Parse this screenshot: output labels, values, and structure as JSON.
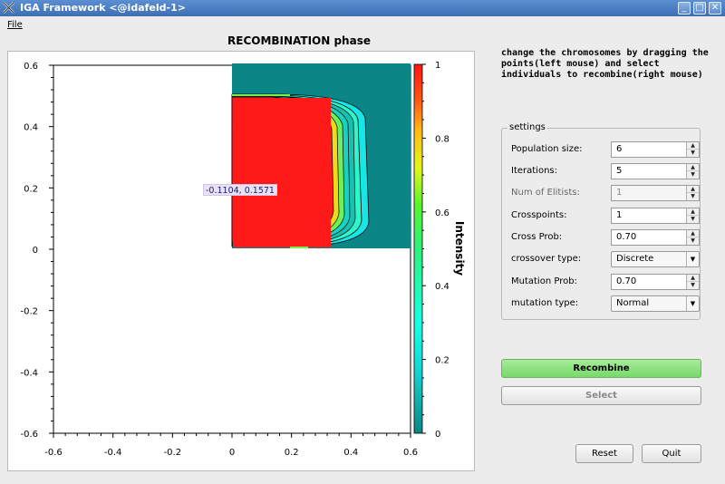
{
  "window": {
    "title": "IGA Framework <@idafeld-1>",
    "icon": "x-app-icon",
    "controls": [
      "minimize-icon",
      "maximize-icon",
      "close-icon"
    ]
  },
  "menubar": {
    "file": "File"
  },
  "plot": {
    "title": "RECOMBINATION phase",
    "hover_label": "-0.1104, 0.1571",
    "colorbar_label": "Intensity",
    "x_ticks": [
      "-0.6",
      "-0.4",
      "-0.2",
      "0",
      "0.2",
      "0.4",
      "0.6"
    ],
    "y_ticks": [
      "0.6",
      "0.4",
      "0.2",
      "0",
      "-0.2",
      "-0.4",
      "-0.6"
    ],
    "colorbar_ticks": [
      "1",
      "0.8",
      "0.6",
      "0.4",
      "0.2",
      "0"
    ]
  },
  "chart_data": {
    "type": "heatmap",
    "xlim": [
      -0.6,
      0.6
    ],
    "ylim": [
      -0.6,
      0.6
    ],
    "colorbar": {
      "label": "Intensity",
      "range": [
        0,
        1
      ],
      "ticks": [
        0,
        0.2,
        0.4,
        0.6,
        0.8,
        1
      ]
    },
    "heatmap_extent": {
      "x": [
        0,
        0.6
      ],
      "y": [
        0,
        0.6
      ]
    }
  },
  "instructions": "change the chromosomes by dragging the points(left mouse) and select individuals to recombine(right mouse)",
  "settings": {
    "legend": "settings",
    "population_size": {
      "label": "Population size:",
      "value": "6"
    },
    "iterations": {
      "label": "Iterations:",
      "value": "5"
    },
    "num_elitists": {
      "label": "Num of Elitists:",
      "value": "1"
    },
    "crosspoints": {
      "label": "Crosspoints:",
      "value": "1"
    },
    "cross_prob": {
      "label": "Cross Prob:",
      "value": "0.70"
    },
    "crossover_type": {
      "label": "crossover type:",
      "value": "Discrete"
    },
    "mutation_prob": {
      "label": "Mutation Prob:",
      "value": "0.70"
    },
    "mutation_type": {
      "label": "mutation type:",
      "value": "Normal"
    }
  },
  "buttons": {
    "recombine": "Recombine",
    "select": "Select",
    "reset": "Reset",
    "quit": "Quit"
  },
  "colors": {
    "recombine_button": "#79d86b",
    "heatmap_background": "#0b8585",
    "heatmap_hot": "#ff1a1a",
    "titlebar": "#4a7dc2"
  }
}
